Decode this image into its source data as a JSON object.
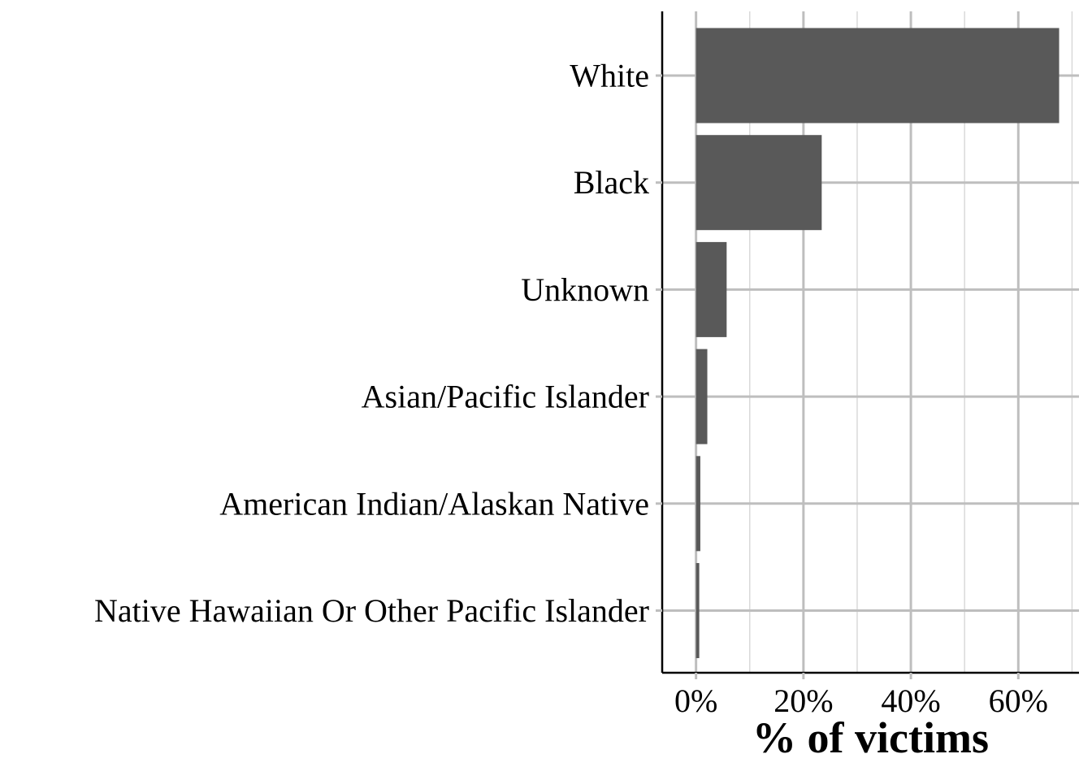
{
  "chart_data": {
    "type": "bar",
    "orientation": "horizontal",
    "categories": [
      "White",
      "Black",
      "Unknown",
      "Asian/Pacific Islander",
      "American Indian/Alaskan Native",
      "Native Hawaiian Or Other Pacific Islander"
    ],
    "values": [
      67.6,
      23.4,
      5.7,
      2.1,
      0.8,
      0.6
    ],
    "unit": "%",
    "xlabel": "% of victims",
    "ylabel": "",
    "title": "",
    "xlim": [
      -6.3,
      71.3
    ],
    "x_ticks": [
      0,
      20,
      40,
      60
    ],
    "x_tick_labels": [
      "0%",
      "20%",
      "40%",
      "60%"
    ],
    "grid": true,
    "legend": "none",
    "colors": {
      "bar": "#595959",
      "grid_major": "#bebebe",
      "grid_minor": "#d9d9d9",
      "axis": "#000000"
    }
  }
}
